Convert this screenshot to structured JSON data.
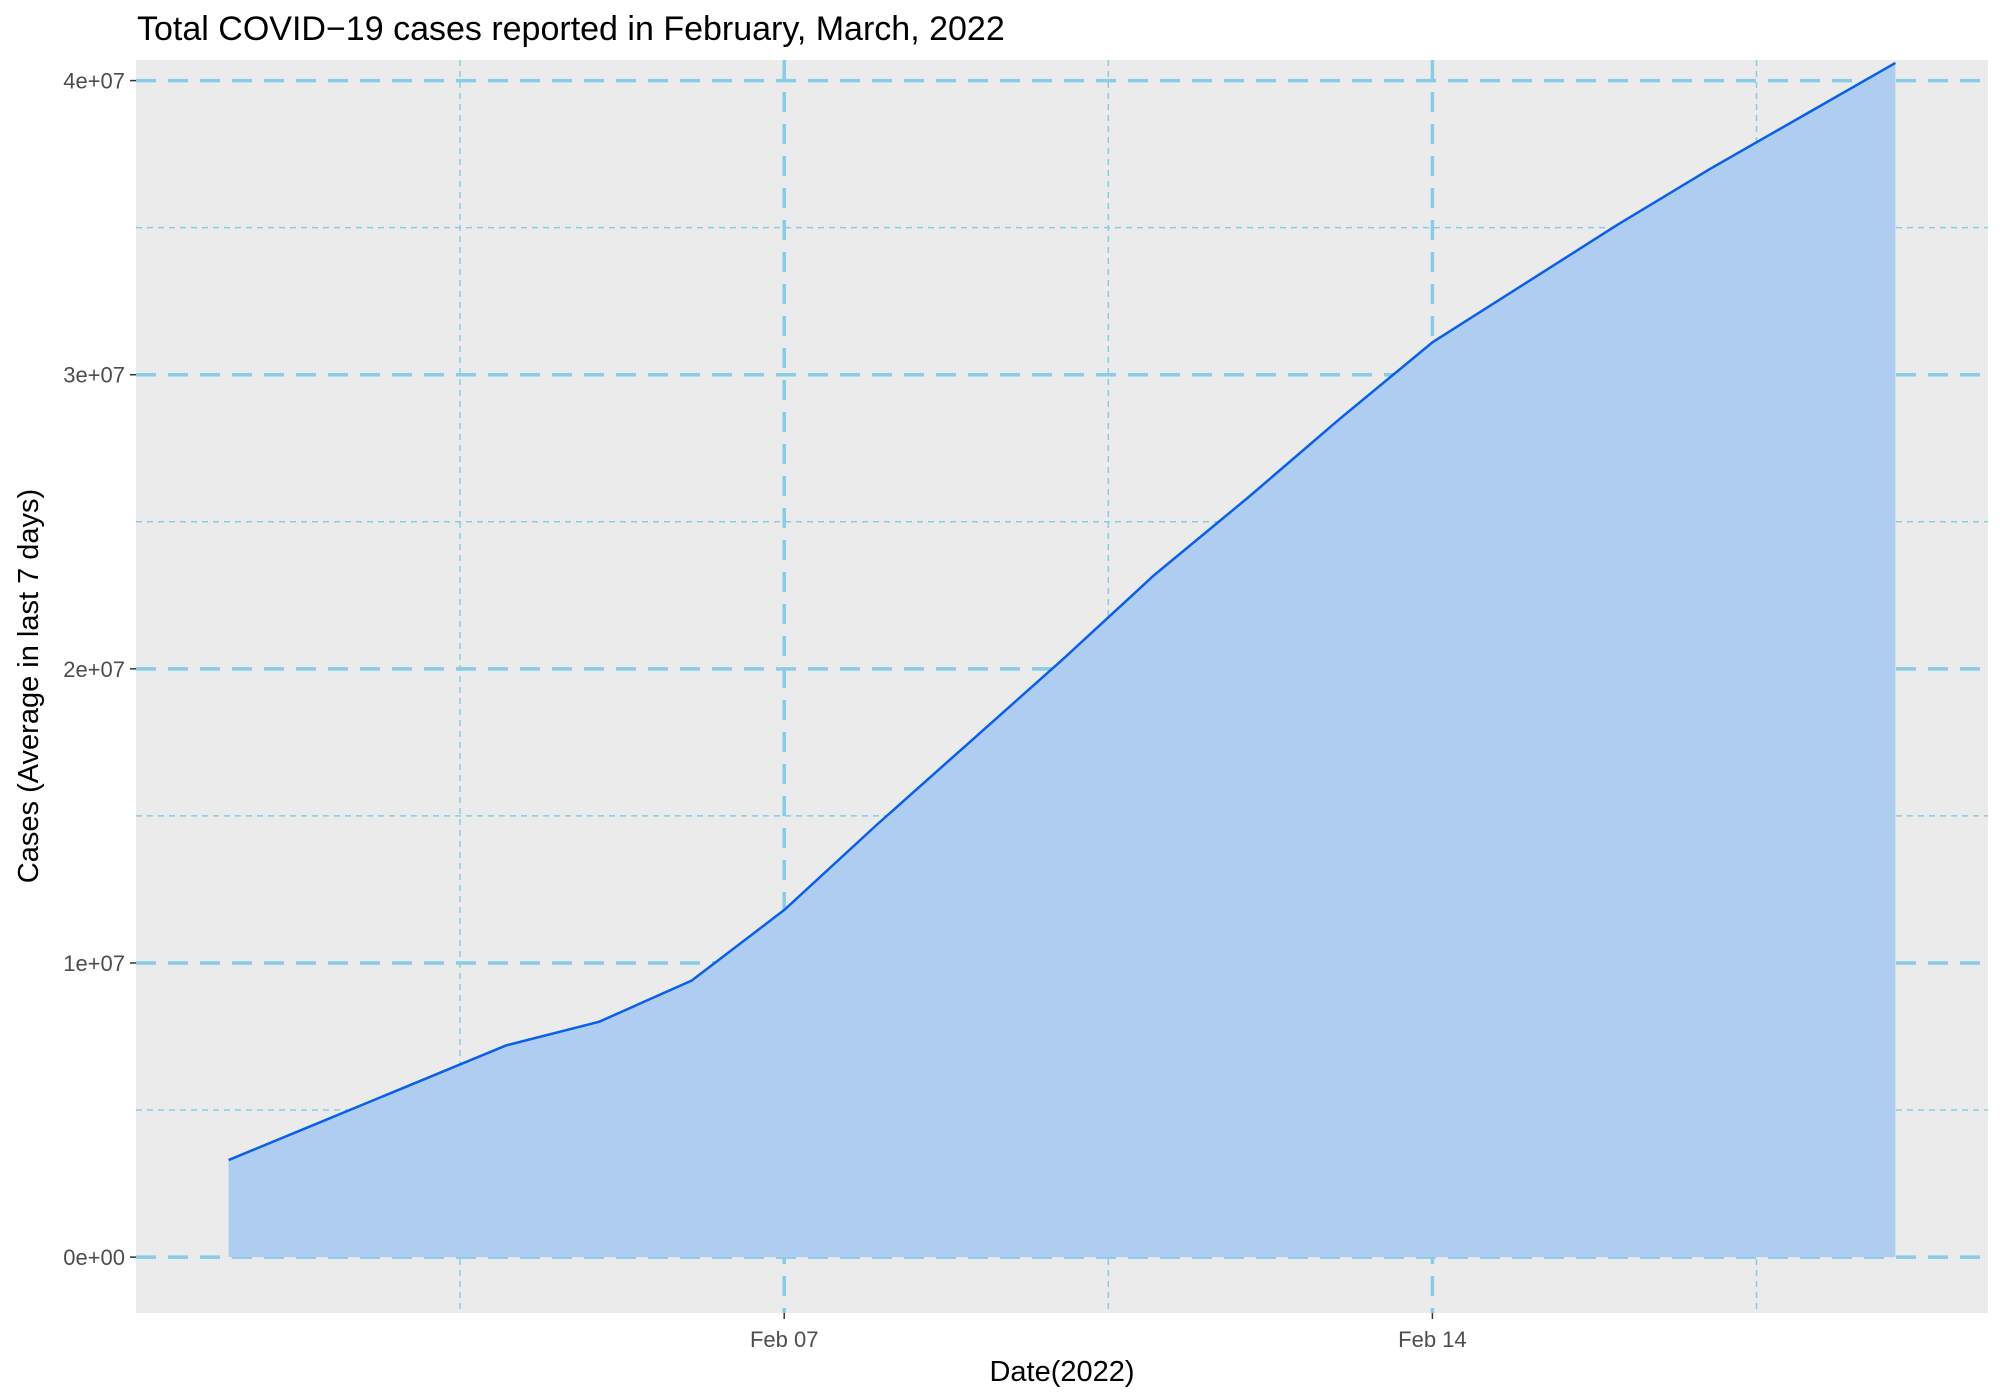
{
  "chart_data": {
    "type": "area",
    "title": "Total COVID−19 cases reported in February, March, 2022",
    "xlabel": "Date(2022)",
    "ylabel": "Cases (Average in last 7 days)",
    "x_ticks": [
      "Feb 07",
      "Feb 14"
    ],
    "y_ticks": [
      "0e+00",
      "1e+07",
      "2e+07",
      "3e+07",
      "4e+07"
    ],
    "ylim": [
      -1900000,
      40700000
    ],
    "xlim": [
      "2022-01-31",
      "2022-02-20"
    ],
    "grid": true,
    "legend": "none",
    "colors": {
      "panel_background": "#ebebeb",
      "grid": "#87cde8",
      "line": "#0a5fe8",
      "fill": "#aecdf1",
      "tick_mark": "#333333"
    },
    "x": [
      "2022-02-01",
      "2022-02-02",
      "2022-02-03",
      "2022-02-04",
      "2022-02-05",
      "2022-02-06",
      "2022-02-07",
      "2022-02-08",
      "2022-02-09",
      "2022-02-10",
      "2022-02-11",
      "2022-02-12",
      "2022-02-13",
      "2022-02-14",
      "2022-02-15",
      "2022-02-16",
      "2022-02-17",
      "2022-02-18",
      "2022-02-19"
    ],
    "series": [
      {
        "values": [
          3300000,
          4600000,
          5900000,
          7200000,
          8000000,
          9400000,
          11800000,
          14700000,
          17500000,
          20300000,
          23200000,
          25800000,
          28500000,
          31100000,
          33100000,
          35100000,
          37000000,
          38800000,
          40600000
        ]
      }
    ]
  }
}
